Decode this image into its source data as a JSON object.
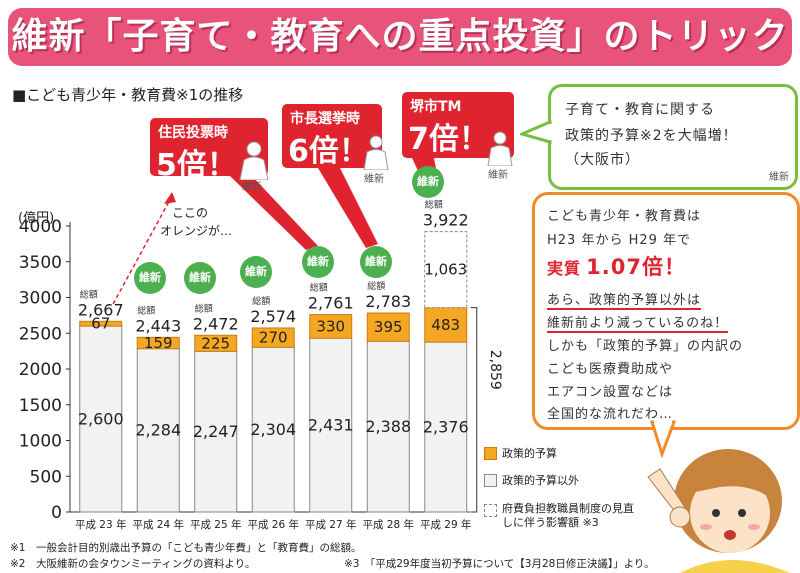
{
  "banner": {
    "title": "維新「子育て・教育への重点投資」のトリック"
  },
  "chart_data": {
    "type": "bar",
    "title": "■こども青少年・教育費※1の推移",
    "ylabel": "(億円)",
    "ylim": [
      0,
      4000
    ],
    "yticks": [
      0,
      500,
      1000,
      1500,
      2000,
      2500,
      3000,
      3500,
      4000
    ],
    "categories": [
      "平成 23 年",
      "平成 24 年",
      "平成 25 年",
      "平成 26 年",
      "平成 27 年",
      "平成 28 年",
      "平成 29 年"
    ],
    "series": [
      {
        "name": "政策的予算以外",
        "values": [
          2600,
          2284,
          2247,
          2304,
          2431,
          2388,
          2376
        ],
        "color": "#f2f2f2"
      },
      {
        "name": "政策的予算",
        "values": [
          67,
          159,
          225,
          270,
          330,
          395,
          483
        ],
        "color": "#f5a623"
      },
      {
        "name": "府費負担教職員制度の見直しに伴う影響額 ※3",
        "values": [
          0,
          0,
          0,
          0,
          0,
          0,
          1063
        ],
        "color": "#ffffff"
      }
    ],
    "total_label": "総額",
    "totals": [
      2667,
      2443,
      2472,
      2574,
      2761,
      2783,
      3922
    ],
    "bracket_value": "2,859",
    "legend_position": "right"
  },
  "callouts": [
    {
      "label": "住民投票時",
      "value": "5倍！"
    },
    {
      "label": "市長選挙時",
      "value": "6倍！"
    },
    {
      "label": "堺市TM",
      "value": "7倍！"
    }
  ],
  "ishin_label": "維新",
  "note": {
    "line1": "ここの",
    "line2": "オレンジが…"
  },
  "bubble_top": {
    "line1": "子育て・教育に関する",
    "line2": "政策的予算※2を大幅増！",
    "line3": "（大阪市）",
    "tag": "維新"
  },
  "bubble_main": {
    "line1": "こども青少年・教育費は",
    "line2": "H23 年から H29 年で",
    "line3a": "実質",
    "line3b": "1.07倍！",
    "line4": "あら、政策的予算以外は",
    "line5": "維新前より減っているのね！",
    "line6": "しかも「政策的予算」の内訳の",
    "line7": "こども医療費助成や",
    "line8": "エアコン設置などは",
    "line9": "全国的な流れだわ…"
  },
  "footnotes": {
    "f1": "※1　一般会計目的別歳出予算の「こども青少年費」と「教育費」の総額。",
    "f2": "※2　大阪維新の会タウンミーティングの資料より。",
    "f3": "※3　「平成29年度当初予算について【3月28日修正決議】」より。"
  }
}
